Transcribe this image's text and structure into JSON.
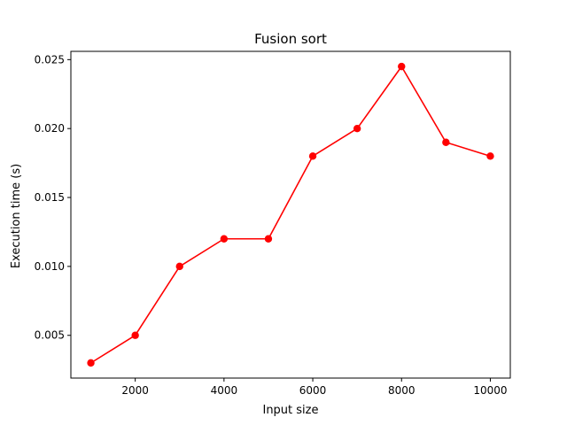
{
  "chart_data": {
    "type": "line",
    "title": "Fusion sort",
    "xlabel": "Input size",
    "ylabel": "Execution time (s)",
    "x": [
      1000,
      2000,
      3000,
      4000,
      5000,
      6000,
      7000,
      8000,
      9000,
      10000
    ],
    "series": [
      {
        "values": [
          0.003,
          0.005,
          0.01,
          0.012,
          0.012,
          0.018,
          0.02,
          0.0245,
          0.019,
          0.018
        ],
        "color": "#ff0000",
        "marker": "circle"
      }
    ],
    "xlim": [
      550,
      10450
    ],
    "ylim": [
      0.0019,
      0.0256
    ],
    "xticks": [
      2000,
      4000,
      6000,
      8000,
      10000
    ],
    "xtick_labels": [
      "2000",
      "4000",
      "6000",
      "8000",
      "10000"
    ],
    "yticks": [
      0.005,
      0.01,
      0.015,
      0.02,
      0.025
    ],
    "ytick_labels": [
      "0.005",
      "0.010",
      "0.015",
      "0.020",
      "0.025"
    ],
    "grid": false,
    "legend": null
  }
}
